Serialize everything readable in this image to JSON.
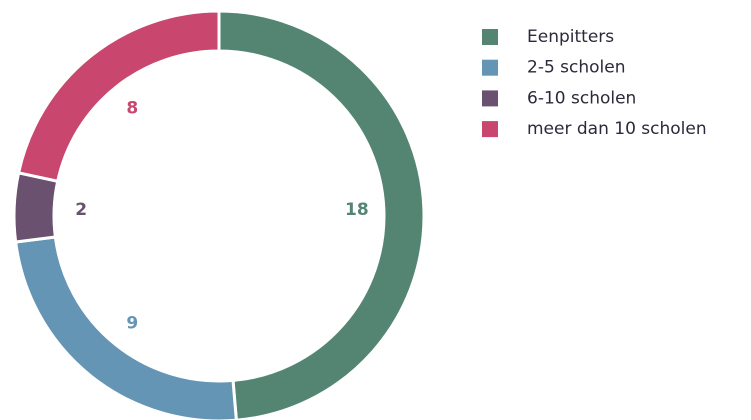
{
  "chart_data": {
    "type": "donut",
    "categories": [
      "Eenpitters",
      "2-5 scholen",
      "6-10 scholen",
      "meer dan 10 scholen"
    ],
    "values": [
      18,
      9,
      2,
      8
    ],
    "colors": [
      "#548573",
      "#6595b5",
      "#6b5170",
      "#c9466e"
    ],
    "legend": "top-right"
  }
}
